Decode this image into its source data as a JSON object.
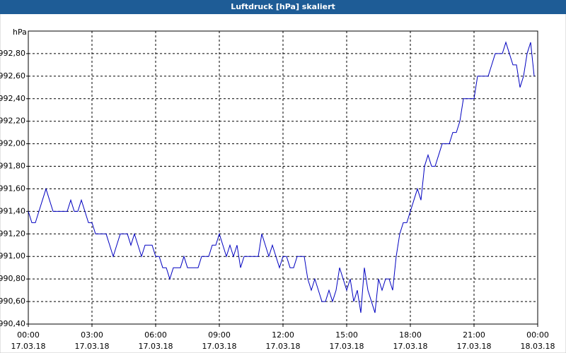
{
  "chart_data": {
    "type": "line",
    "title": "Luftdruck [hPa] skaliert",
    "y_label": "hPa",
    "x": [
      0,
      10,
      20,
      30,
      40,
      50,
      60,
      70,
      80,
      90,
      100,
      110,
      120,
      130,
      140,
      150,
      160,
      170,
      180,
      190,
      200,
      210,
      220,
      230,
      240,
      250,
      260,
      270,
      280,
      290,
      300,
      310,
      320,
      330,
      340,
      350,
      360,
      370,
      380,
      390,
      400,
      410,
      420,
      430,
      440,
      450,
      460,
      470,
      480,
      490,
      500,
      510,
      520,
      530,
      540,
      550,
      560,
      570,
      580,
      590,
      600,
      610,
      620,
      630,
      640,
      650,
      660,
      670,
      680,
      690,
      700,
      710,
      720,
      730,
      740,
      750,
      760,
      770,
      780,
      790,
      800,
      810,
      820,
      830,
      840,
      850,
      860,
      870,
      880,
      890,
      900,
      910,
      920,
      930,
      940,
      950,
      960,
      970,
      980,
      990,
      1000,
      1010,
      1020,
      1030,
      1040,
      1050,
      1060,
      1070,
      1080,
      1090,
      1100,
      1110,
      1120,
      1130,
      1140,
      1150,
      1160,
      1170,
      1180,
      1190,
      1200,
      1210,
      1220,
      1230,
      1240,
      1250,
      1260,
      1270,
      1280,
      1290,
      1300,
      1310,
      1320,
      1330,
      1340,
      1350,
      1360,
      1370,
      1380,
      1390,
      1400,
      1410,
      1420,
      1430
    ],
    "series": [
      {
        "color": "#0000c0",
        "values": [
          991.4,
          991.3,
          991.3,
          991.4,
          991.5,
          991.6,
          991.5,
          991.4,
          991.4,
          991.4,
          991.4,
          991.4,
          991.5,
          991.4,
          991.4,
          991.5,
          991.4,
          991.3,
          991.3,
          991.2,
          991.2,
          991.2,
          991.2,
          991.1,
          991.0,
          991.1,
          991.2,
          991.2,
          991.2,
          991.1,
          991.2,
          991.1,
          991.0,
          991.1,
          991.1,
          991.1,
          991.0,
          991.0,
          990.9,
          990.9,
          990.8,
          990.9,
          990.9,
          990.9,
          991.0,
          990.9,
          990.9,
          990.9,
          990.9,
          991.0,
          991.0,
          991.0,
          991.1,
          991.1,
          991.2,
          991.1,
          991.0,
          991.1,
          991.0,
          991.1,
          990.9,
          991.0,
          991.0,
          991.0,
          991.0,
          991.0,
          991.2,
          991.1,
          991.0,
          991.1,
          991.0,
          990.9,
          991.0,
          991.0,
          990.9,
          990.9,
          991.0,
          991.0,
          991.0,
          990.8,
          990.7,
          990.8,
          990.7,
          990.6,
          990.6,
          990.7,
          990.6,
          990.7,
          990.9,
          990.8,
          990.7,
          990.8,
          990.6,
          990.7,
          990.5,
          990.9,
          990.7,
          990.6,
          990.5,
          990.8,
          990.7,
          990.8,
          990.8,
          990.7,
          991.0,
          991.2,
          991.3,
          991.3,
          991.4,
          991.5,
          991.6,
          991.5,
          991.8,
          991.9,
          991.8,
          991.8,
          991.9,
          992.0,
          992.0,
          992.0,
          992.1,
          992.1,
          992.2,
          992.4,
          992.4,
          992.4,
          992.4,
          992.6,
          992.6,
          992.6,
          992.6,
          992.7,
          992.8,
          992.8,
          992.8,
          992.9,
          992.8,
          992.7,
          992.7,
          992.5,
          992.6,
          992.8,
          992.9,
          992.6
        ]
      }
    ],
    "xlim": [
      0,
      1440
    ],
    "xticks": [
      {
        "value": 0,
        "label": "00:00"
      },
      {
        "value": 180,
        "label": "03:00"
      },
      {
        "value": 360,
        "label": "06:00"
      },
      {
        "value": 540,
        "label": "09:00"
      },
      {
        "value": 720,
        "label": "12:00"
      },
      {
        "value": 900,
        "label": "15:00"
      },
      {
        "value": 1080,
        "label": "18:00"
      },
      {
        "value": 1260,
        "label": "21:00"
      },
      {
        "value": 1440,
        "label": "00:00"
      }
    ],
    "xtick_dates": [
      "17.03.18",
      "17.03.18",
      "17.03.18",
      "17.03.18",
      "17.03.18",
      "17.03.18",
      "17.03.18",
      "17.03.18",
      "18.03.18"
    ],
    "ylim": [
      990.4,
      993.0
    ],
    "yticks": [
      {
        "value": 990.4,
        "label": "990,40"
      },
      {
        "value": 990.6,
        "label": "990,60"
      },
      {
        "value": 990.8,
        "label": "990,80"
      },
      {
        "value": 991.0,
        "label": "991,00"
      },
      {
        "value": 991.2,
        "label": "991,20"
      },
      {
        "value": 991.4,
        "label": "991,40"
      },
      {
        "value": 991.6,
        "label": "991,60"
      },
      {
        "value": 991.8,
        "label": "991,80"
      },
      {
        "value": 992.0,
        "label": "992,00"
      },
      {
        "value": 992.2,
        "label": "992,20"
      },
      {
        "value": 992.4,
        "label": "992,40"
      },
      {
        "value": 992.6,
        "label": "992,60"
      },
      {
        "value": 992.8,
        "label": "992,80"
      }
    ],
    "grid": true
  }
}
